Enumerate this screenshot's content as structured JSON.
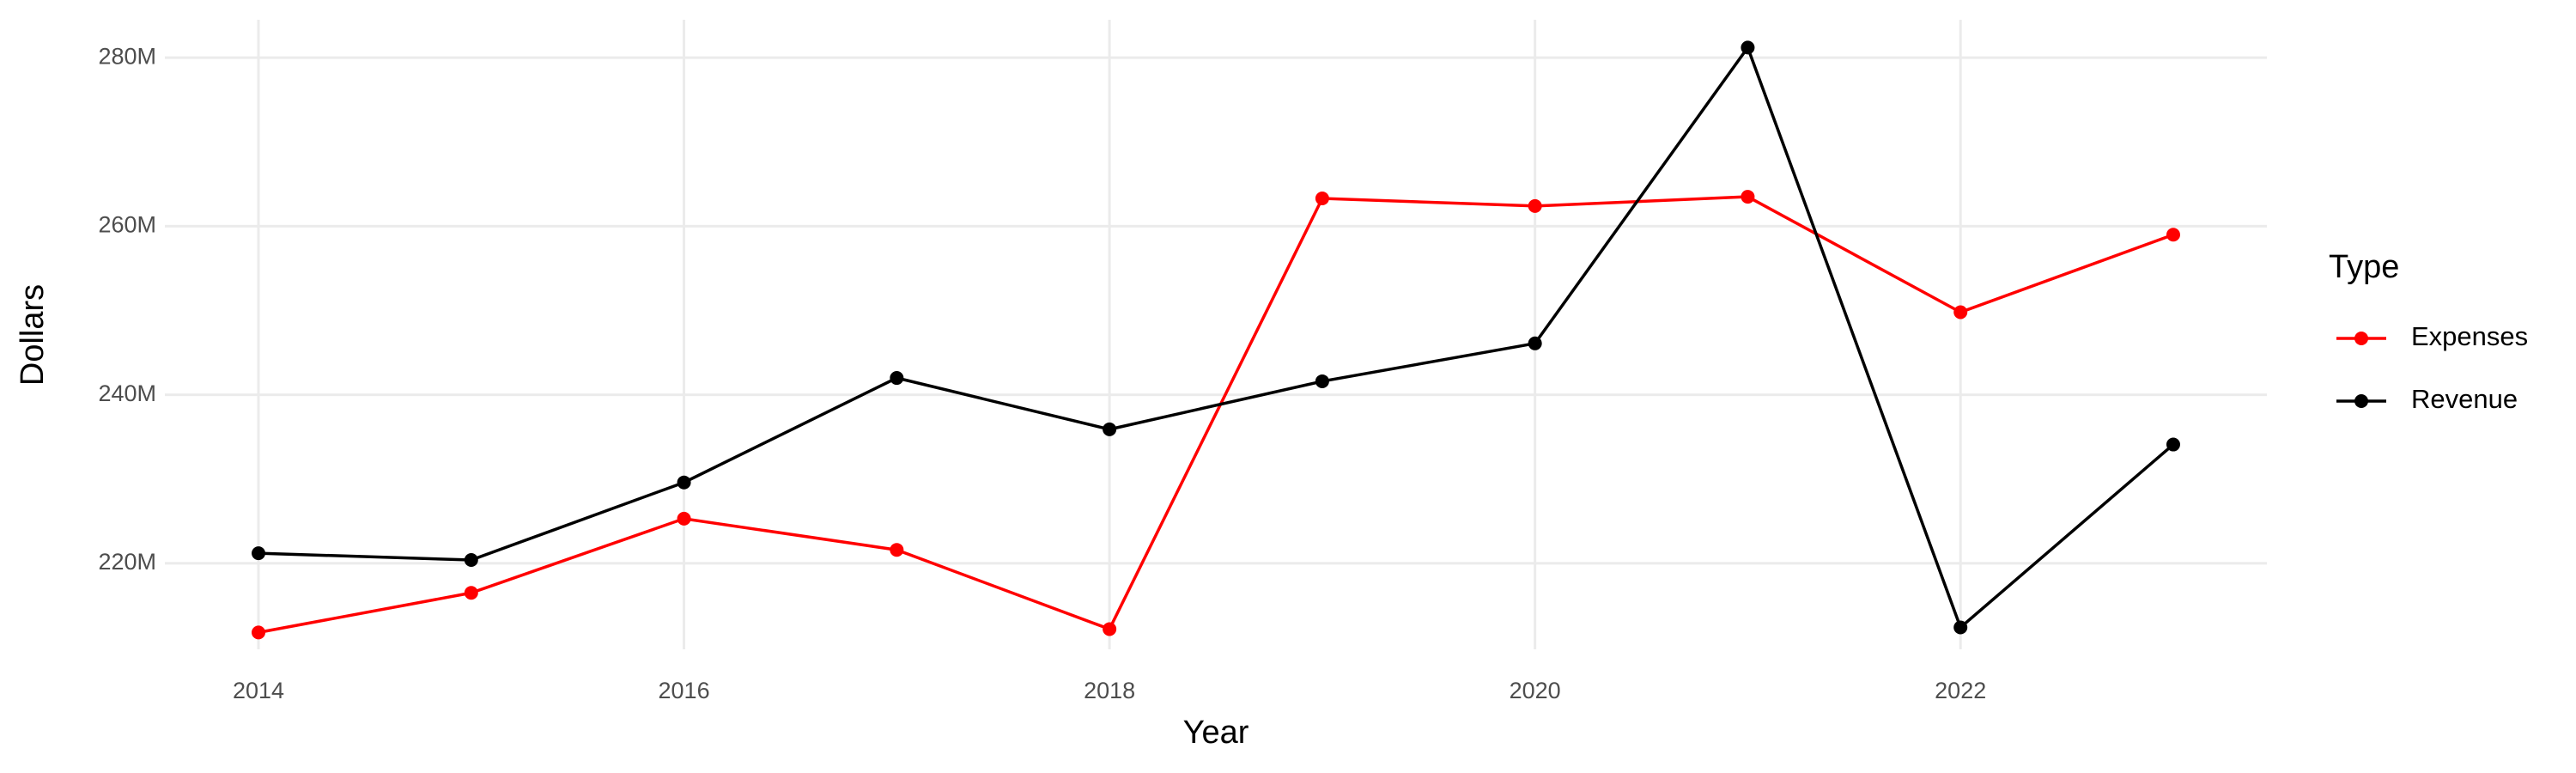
{
  "chart_data": {
    "type": "line",
    "x_label": "Year",
    "y_label": "Dollars",
    "x": [
      2014,
      2015,
      2016,
      2017,
      2018,
      2019,
      2020,
      2021,
      2022,
      2023
    ],
    "series": [
      {
        "name": "Expenses",
        "color": "#ff0000",
        "values": [
          211800000,
          216500000,
          225300000,
          221600000,
          212200000,
          263300000,
          262400000,
          263500000,
          249800000,
          259000000
        ]
      },
      {
        "name": "Revenue",
        "color": "#000000",
        "values": [
          221200000,
          220400000,
          229600000,
          242000000,
          235900000,
          241600000,
          246100000,
          281200000,
          212400000,
          234100000
        ]
      }
    ],
    "xlim": [
      2013.56,
      2023.44
    ],
    "xticks": [
      2014,
      2016,
      2018,
      2020,
      2022
    ],
    "ylim": [
      209800000,
      284500000
    ],
    "yticks": [
      {
        "value": 220000000,
        "label": "220M"
      },
      {
        "value": 240000000,
        "label": "240M"
      },
      {
        "value": 260000000,
        "label": "260M"
      },
      {
        "value": 280000000,
        "label": "280M"
      }
    ],
    "grid": true,
    "legend_title": "Type",
    "legend_position": "right"
  }
}
